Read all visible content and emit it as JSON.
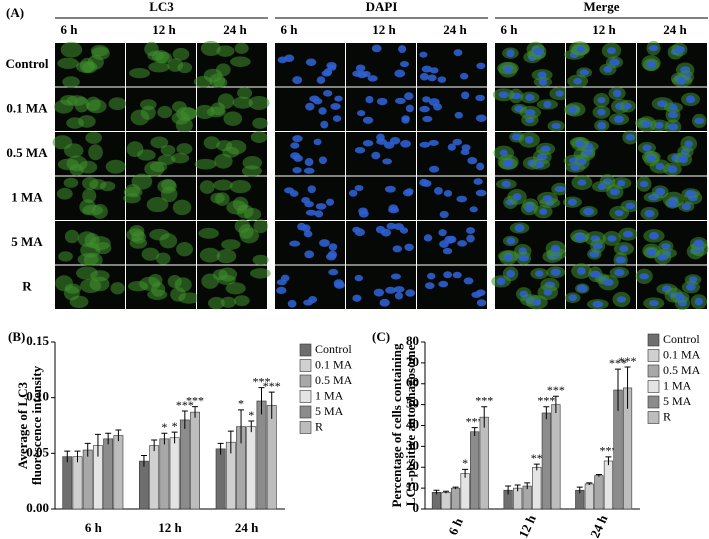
{
  "panel_a": {
    "label": "(A)",
    "groups": [
      "LC3",
      "DAPI",
      "Merge"
    ],
    "times": [
      "6 h",
      "12 h",
      "24 h"
    ],
    "rows": [
      "Control",
      "0.1 MA",
      "0.5 MA",
      "1 MA",
      "5 MA",
      "R"
    ]
  },
  "chart_data": [
    {
      "type": "bar",
      "label": "(B)",
      "ylabel": [
        "Average of LC3",
        "fluorescence intensity"
      ],
      "categories": [
        "6 h",
        "12 h",
        "24 h"
      ],
      "ylim": [
        0,
        0.15
      ],
      "yticks": [
        {
          "value": 0,
          "label": "0.00"
        },
        {
          "value": 0.05,
          "label": "0.05"
        },
        {
          "value": 0.1,
          "label": "0.10"
        },
        {
          "value": 0.15,
          "label": "0.15"
        }
      ],
      "series": [
        {
          "name": "Control",
          "color": "#6e6e6e",
          "values": [
            0.047,
            0.043,
            0.054
          ],
          "errors": [
            0.005,
            0.005,
            0.005
          ],
          "significance": [
            null,
            null,
            null
          ]
        },
        {
          "name": "0.1 MA",
          "color": "#d0d0d0",
          "values": [
            0.047,
            0.057,
            0.06
          ],
          "errors": [
            0.005,
            0.005,
            0.01
          ],
          "significance": [
            null,
            null,
            null
          ]
        },
        {
          "name": "0.5 MA",
          "color": "#a8a8a8",
          "values": [
            0.053,
            0.063,
            0.074
          ],
          "errors": [
            0.006,
            0.005,
            0.015
          ],
          "significance": [
            null,
            "*",
            "*"
          ]
        },
        {
          "name": "1 MA",
          "color": "#e4e4e4",
          "values": [
            0.057,
            0.064,
            0.074
          ],
          "errors": [
            0.01,
            0.005,
            0.005
          ],
          "significance": [
            null,
            "*",
            "*"
          ]
        },
        {
          "name": "5 MA",
          "color": "#8c8c8c",
          "values": [
            0.063,
            0.08,
            0.097
          ],
          "errors": [
            0.005,
            0.008,
            0.012
          ],
          "significance": [
            null,
            "***",
            "***"
          ]
        },
        {
          "name": "R",
          "color": "#bdbdbd",
          "values": [
            0.066,
            0.087,
            0.093
          ],
          "errors": [
            0.005,
            0.005,
            0.012
          ],
          "significance": [
            null,
            "***",
            "***"
          ]
        }
      ]
    },
    {
      "type": "bar",
      "label": "(C)",
      "ylabel": [
        "Percentage of cells containing",
        "LC3-positive autophagosome"
      ],
      "categories": [
        "6 h",
        "12 h",
        "24 h"
      ],
      "ylim": [
        0,
        80
      ],
      "yticks": [
        0,
        10,
        20,
        30,
        40,
        50,
        60,
        70,
        80
      ],
      "series": [
        {
          "name": "Control",
          "color": "#6e6e6e",
          "values": [
            8,
            9,
            9
          ],
          "errors": [
            1,
            2,
            1.5
          ],
          "significance": [
            null,
            null,
            null
          ]
        },
        {
          "name": "0.1 MA",
          "color": "#d0d0d0",
          "values": [
            8,
            10,
            12
          ],
          "errors": [
            0.5,
            1.5,
            0.5
          ],
          "significance": [
            null,
            null,
            null
          ]
        },
        {
          "name": "0.5 MA",
          "color": "#a8a8a8",
          "values": [
            10,
            11,
            16
          ],
          "errors": [
            0.5,
            1.5,
            0.5
          ],
          "significance": [
            null,
            null,
            null
          ]
        },
        {
          "name": "1 MA",
          "color": "#e4e4e4",
          "values": [
            17,
            20,
            23
          ],
          "errors": [
            2,
            1.5,
            2
          ],
          "significance": [
            "*",
            "**",
            "***"
          ]
        },
        {
          "name": "5 MA",
          "color": "#8c8c8c",
          "values": [
            37,
            46,
            57
          ],
          "errors": [
            2,
            3,
            10
          ],
          "significance": [
            "***",
            "***",
            "***"
          ]
        },
        {
          "name": "R",
          "color": "#bdbdbd",
          "values": [
            44,
            50,
            58
          ],
          "errors": [
            5,
            4,
            10
          ],
          "significance": [
            "***",
            "***",
            "***"
          ]
        }
      ]
    }
  ]
}
